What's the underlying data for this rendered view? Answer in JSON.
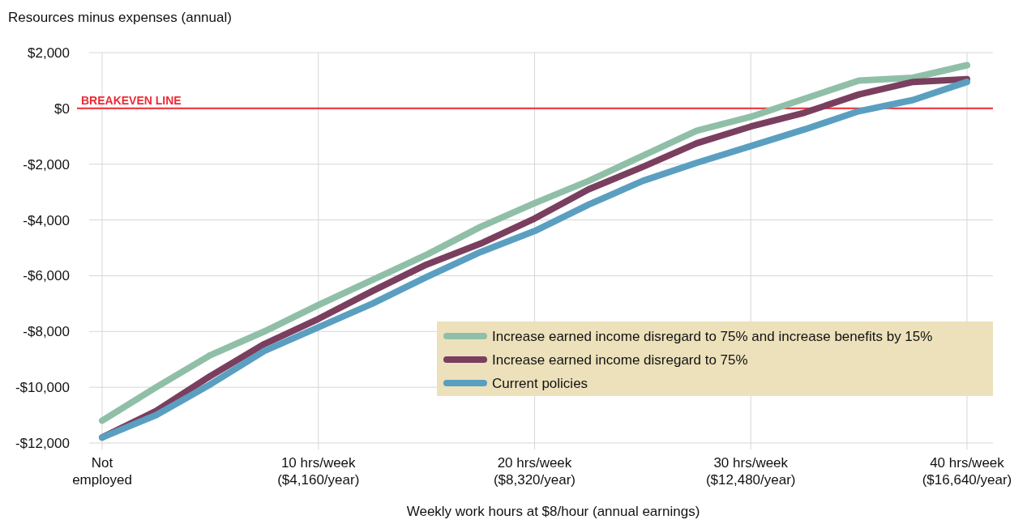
{
  "chart_data": {
    "type": "line",
    "xlabel": "Weekly work hours at $8/hour (annual earnings)",
    "ylabel": "Resources minus expenses (annual)",
    "categories": [
      "Not\nemployed",
      null,
      null,
      null,
      "10 hrs/week\n($4,160/year)",
      null,
      null,
      null,
      "20 hrs/week\n($8,320/year)",
      null,
      null,
      null,
      "30 hrs/week\n($12,480/year)",
      null,
      null,
      null,
      "40 hrs/week\n($16,640/year)"
    ],
    "series": [
      {
        "name": "Increase earned income disregard to 75% and increase benefits by 15%",
        "color": "#90bfa8",
        "values": [
          -11200,
          -10000,
          -8850,
          -8000,
          -7050,
          -6150,
          -5250,
          -4250,
          -3400,
          -2600,
          -1700,
          -800,
          -300,
          350,
          1000,
          1100,
          1550
        ]
      },
      {
        "name": "Increase earned income disregard to 75%",
        "color": "#7a3f5f",
        "values": [
          -11800,
          -10850,
          -9600,
          -8450,
          -7550,
          -6550,
          -5600,
          -4850,
          -3950,
          -2900,
          -2100,
          -1250,
          -650,
          -150,
          500,
          950,
          1050
        ]
      },
      {
        "name": "Current policies",
        "color": "#5a9fc0",
        "values": [
          -11800,
          -11000,
          -9900,
          -8700,
          -7850,
          -7000,
          -6050,
          -5150,
          -4400,
          -3450,
          -2600,
          -1950,
          -1350,
          -750,
          -100,
          300,
          950
        ]
      }
    ],
    "ylim": [
      -12000,
      2000
    ],
    "yticks": [
      {
        "value": 2000,
        "label": "$2,000"
      },
      {
        "value": 0,
        "label": "$0"
      },
      {
        "value": -2000,
        "label": "-$2,000"
      },
      {
        "value": -4000,
        "label": "-$4,000"
      },
      {
        "value": -6000,
        "label": "-$6,000"
      },
      {
        "value": -8000,
        "label": "-$8,000"
      },
      {
        "value": -10000,
        "label": "-$10,000"
      },
      {
        "value": -12000,
        "label": "-$12,000"
      }
    ],
    "ref_lines": [
      {
        "axis": "y",
        "value": 0,
        "label": "BREAKEVEN LINE",
        "color": "#ee2a35"
      }
    ],
    "grid": true,
    "legend": "bottom right",
    "marker": "none",
    "line_style": "solid"
  }
}
